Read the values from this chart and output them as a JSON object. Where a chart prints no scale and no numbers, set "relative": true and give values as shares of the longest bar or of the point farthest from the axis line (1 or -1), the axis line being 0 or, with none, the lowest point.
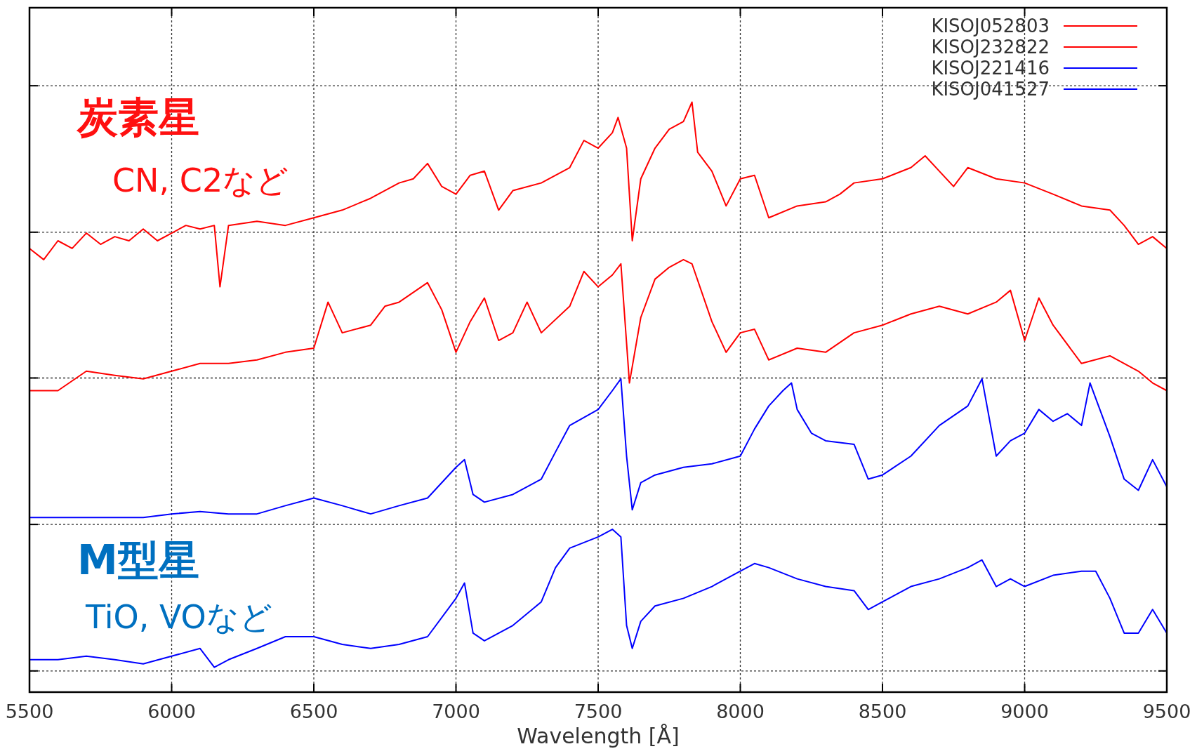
{
  "chart_data": {
    "type": "line",
    "relative": true,
    "xlabel": "Wavelength [Å]",
    "xlim": [
      5500,
      9500
    ],
    "xticks": [
      5500,
      6000,
      6500,
      7000,
      7500,
      8000,
      8500,
      9000,
      9500
    ],
    "grid": true,
    "legend": "top right",
    "annotations": [
      "炭素星",
      "CN, C2など",
      "M型星",
      "TiO, VOなど"
    ],
    "series": [
      {
        "name": "KISOJ052803",
        "color": "#ff0000",
        "x": [
          5500,
          5550,
          5600,
          5650,
          5700,
          5750,
          5800,
          5850,
          5900,
          5950,
          6000,
          6050,
          6100,
          6150,
          6170,
          6200,
          6300,
          6400,
          6500,
          6600,
          6700,
          6800,
          6850,
          6900,
          6950,
          7000,
          7050,
          7100,
          7150,
          7200,
          7300,
          7400,
          7450,
          7500,
          7550,
          7570,
          7600,
          7620,
          7650,
          7700,
          7750,
          7800,
          7830,
          7850,
          7900,
          7950,
          8000,
          8050,
          8100,
          8200,
          8300,
          8350,
          8400,
          8500,
          8600,
          8650,
          8700,
          8750,
          8800,
          8900,
          9000,
          9100,
          9200,
          9300,
          9350,
          9400,
          9450,
          9500
        ],
        "values": [
          0.752,
          0.733,
          0.765,
          0.752,
          0.778,
          0.759,
          0.772,
          0.765,
          0.785,
          0.765,
          0.778,
          0.791,
          0.785,
          0.791,
          0.687,
          0.791,
          0.798,
          0.791,
          0.804,
          0.817,
          0.837,
          0.863,
          0.87,
          0.896,
          0.857,
          0.844,
          0.876,
          0.883,
          0.817,
          0.85,
          0.863,
          0.889,
          0.935,
          0.922,
          0.948,
          0.974,
          0.922,
          0.765,
          0.87,
          0.922,
          0.954,
          0.967,
          1,
          0.915,
          0.883,
          0.824,
          0.87,
          0.876,
          0.804,
          0.824,
          0.831,
          0.844,
          0.863,
          0.87,
          0.889,
          0.909,
          0.883,
          0.857,
          0.889,
          0.87,
          0.863,
          0.844,
          0.824,
          0.817,
          0.791,
          0.759,
          0.772,
          0.752
        ]
      },
      {
        "name": "KISOJ232822",
        "color": "#ff0000",
        "x": [
          5500,
          5600,
          5700,
          5800,
          5900,
          6000,
          6100,
          6200,
          6300,
          6400,
          6500,
          6550,
          6600,
          6700,
          6750,
          6800,
          6900,
          6950,
          7000,
          7050,
          7100,
          7150,
          7200,
          7250,
          7300,
          7400,
          7450,
          7500,
          7550,
          7580,
          7610,
          7650,
          7700,
          7750,
          7800,
          7830,
          7900,
          7950,
          8000,
          8050,
          8100,
          8200,
          8300,
          8400,
          8500,
          8600,
          8700,
          8800,
          8900,
          8950,
          9000,
          9050,
          9100,
          9200,
          9300,
          9400,
          9450,
          9500
        ],
        "values": [
          0.511,
          0.511,
          0.544,
          0.537,
          0.531,
          0.544,
          0.557,
          0.557,
          0.563,
          0.576,
          0.583,
          0.661,
          0.609,
          0.622,
          0.654,
          0.661,
          0.694,
          0.648,
          0.576,
          0.628,
          0.668,
          0.596,
          0.609,
          0.661,
          0.609,
          0.654,
          0.713,
          0.687,
          0.707,
          0.726,
          0.524,
          0.635,
          0.7,
          0.72,
          0.733,
          0.726,
          0.628,
          0.576,
          0.609,
          0.615,
          0.563,
          0.583,
          0.576,
          0.609,
          0.622,
          0.641,
          0.654,
          0.641,
          0.661,
          0.681,
          0.596,
          0.668,
          0.622,
          0.557,
          0.57,
          0.544,
          0.524,
          0.511
        ]
      },
      {
        "name": "KISOJ221416",
        "color": "#0000ff",
        "x": [
          5500,
          5600,
          5700,
          5800,
          5900,
          6000,
          6100,
          6200,
          6300,
          6400,
          6500,
          6600,
          6700,
          6800,
          6900,
          7000,
          7030,
          7060,
          7100,
          7200,
          7300,
          7350,
          7400,
          7500,
          7550,
          7580,
          7600,
          7620,
          7650,
          7700,
          7800,
          7900,
          8000,
          8050,
          8100,
          8150,
          8180,
          8200,
          8250,
          8300,
          8400,
          8450,
          8500,
          8600,
          8700,
          8800,
          8850,
          8900,
          8950,
          9000,
          9050,
          9100,
          9150,
          9200,
          9230,
          9300,
          9350,
          9400,
          9450,
          9500
        ],
        "values": [
          0.296,
          0.296,
          0.296,
          0.296,
          0.296,
          0.302,
          0.306,
          0.302,
          0.302,
          0.316,
          0.329,
          0.316,
          0.302,
          0.316,
          0.329,
          0.381,
          0.394,
          0.335,
          0.322,
          0.335,
          0.361,
          0.407,
          0.452,
          0.479,
          0.511,
          0.531,
          0.4,
          0.309,
          0.355,
          0.368,
          0.381,
          0.387,
          0.4,
          0.446,
          0.485,
          0.511,
          0.524,
          0.479,
          0.439,
          0.426,
          0.42,
          0.361,
          0.368,
          0.4,
          0.452,
          0.485,
          0.531,
          0.4,
          0.426,
          0.439,
          0.479,
          0.459,
          0.472,
          0.452,
          0.524,
          0.433,
          0.361,
          0.342,
          0.394,
          0.348
        ]
      },
      {
        "name": "KISOJ041527",
        "color": "#0000ff",
        "x": [
          5500,
          5600,
          5700,
          5800,
          5900,
          6000,
          6100,
          6150,
          6200,
          6300,
          6400,
          6500,
          6600,
          6700,
          6800,
          6900,
          7000,
          7030,
          7060,
          7100,
          7200,
          7300,
          7350,
          7400,
          7500,
          7550,
          7580,
          7600,
          7620,
          7650,
          7700,
          7800,
          7900,
          8000,
          8050,
          8100,
          8200,
          8300,
          8400,
          8450,
          8500,
          8600,
          8700,
          8800,
          8850,
          8900,
          8950,
          9000,
          9100,
          9200,
          9250,
          9300,
          9350,
          9400,
          9450,
          9500
        ],
        "values": [
          0.055,
          0.055,
          0.061,
          0.055,
          0.048,
          0.061,
          0.074,
          0.042,
          0.055,
          0.074,
          0.094,
          0.094,
          0.081,
          0.074,
          0.081,
          0.094,
          0.159,
          0.185,
          0.1,
          0.087,
          0.113,
          0.153,
          0.211,
          0.244,
          0.263,
          0.276,
          0.263,
          0.113,
          0.074,
          0.12,
          0.146,
          0.159,
          0.179,
          0.205,
          0.218,
          0.211,
          0.192,
          0.179,
          0.172,
          0.14,
          0.153,
          0.179,
          0.192,
          0.211,
          0.224,
          0.179,
          0.192,
          0.179,
          0.198,
          0.205,
          0.205,
          0.159,
          0.1,
          0.1,
          0.14,
          0.1
        ]
      }
    ]
  }
}
